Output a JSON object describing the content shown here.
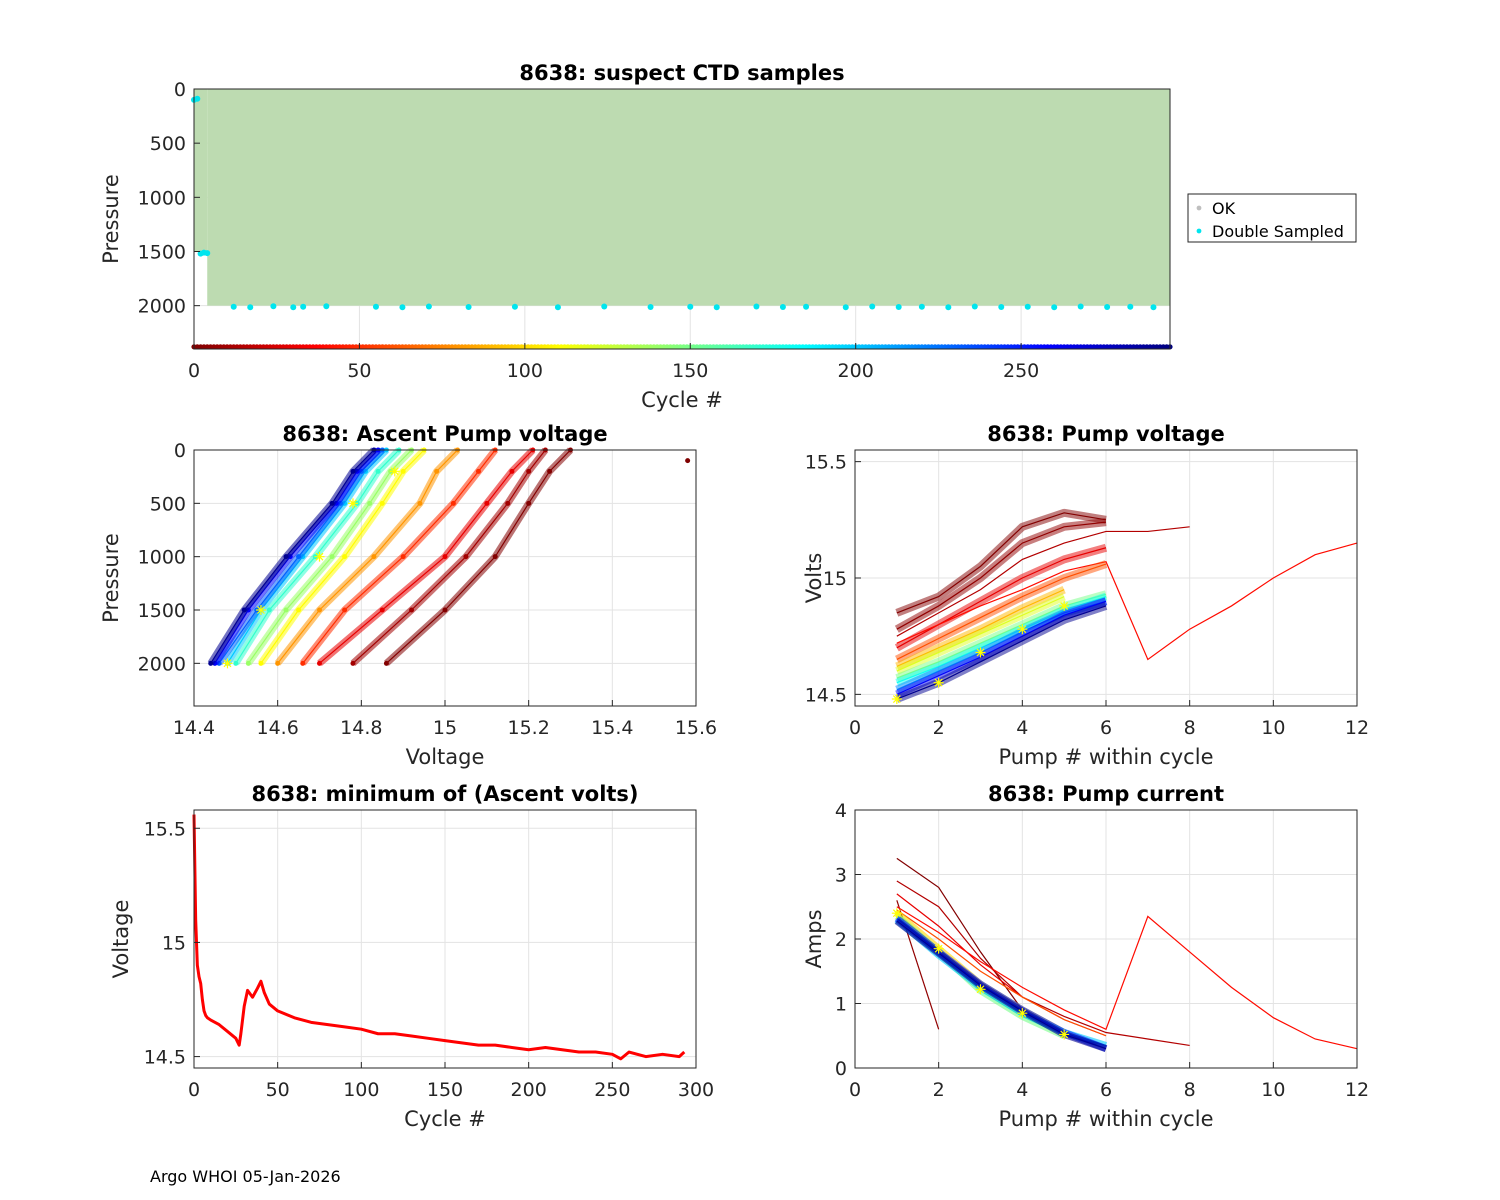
{
  "footer": "Argo WHOI 05-Jan-2026",
  "chart_data": [
    {
      "id": "suspect",
      "type": "scatter",
      "title": "8638: suspect CTD samples",
      "xlabel": "Cycle #",
      "ylabel": "Pressure",
      "xlim": [
        0,
        295
      ],
      "ylim": [
        2400,
        0
      ],
      "xticks": [
        0,
        50,
        100,
        150,
        200,
        250
      ],
      "yticks": [
        0,
        500,
        1000,
        1500,
        2000
      ],
      "legend": {
        "position": "outside-right",
        "entries": [
          {
            "label": "OK",
            "color": "#bfbfbf"
          },
          {
            "label": "Double Sampled",
            "color": "#00e5ee"
          }
        ]
      },
      "ok_region": {
        "cycles": [
          0,
          295
        ],
        "pressure": [
          0,
          2000
        ],
        "fill": "#bddbb1"
      },
      "double_sampled": [
        {
          "cycle": 0,
          "pressure": 100
        },
        {
          "cycle": 1,
          "pressure": 90
        },
        {
          "cycle": 2,
          "pressure": 1520
        },
        {
          "cycle": 3,
          "pressure": 1510
        },
        {
          "cycle": 4,
          "pressure": 1515
        },
        {
          "cycle": 12,
          "pressure": 2010
        },
        {
          "cycle": 17,
          "pressure": 2015
        },
        {
          "cycle": 24,
          "pressure": 2005
        },
        {
          "cycle": 30,
          "pressure": 2015
        },
        {
          "cycle": 33,
          "pressure": 2010
        },
        {
          "cycle": 40,
          "pressure": 2005
        },
        {
          "cycle": 55,
          "pressure": 2010
        },
        {
          "cycle": 63,
          "pressure": 2015
        },
        {
          "cycle": 71,
          "pressure": 2008
        },
        {
          "cycle": 83,
          "pressure": 2012
        },
        {
          "cycle": 97,
          "pressure": 2010
        },
        {
          "cycle": 110,
          "pressure": 2015
        },
        {
          "cycle": 124,
          "pressure": 2008
        },
        {
          "cycle": 138,
          "pressure": 2012
        },
        {
          "cycle": 150,
          "pressure": 2010
        },
        {
          "cycle": 158,
          "pressure": 2015
        },
        {
          "cycle": 170,
          "pressure": 2008
        },
        {
          "cycle": 178,
          "pressure": 2012
        },
        {
          "cycle": 185,
          "pressure": 2010
        },
        {
          "cycle": 197,
          "pressure": 2015
        },
        {
          "cycle": 205,
          "pressure": 2008
        },
        {
          "cycle": 213,
          "pressure": 2012
        },
        {
          "cycle": 220,
          "pressure": 2010
        },
        {
          "cycle": 228,
          "pressure": 2015
        },
        {
          "cycle": 236,
          "pressure": 2008
        },
        {
          "cycle": 244,
          "pressure": 2012
        },
        {
          "cycle": 252,
          "pressure": 2010
        },
        {
          "cycle": 260,
          "pressure": 2015
        },
        {
          "cycle": 268,
          "pressure": 2008
        },
        {
          "cycle": 276,
          "pressure": 2012
        },
        {
          "cycle": 283,
          "pressure": 2010
        },
        {
          "cycle": 290,
          "pressure": 2015
        }
      ],
      "cycle_colorbar": {
        "pressure": 2380,
        "cycles": [
          0,
          295
        ],
        "colormap": "jet-reversed"
      }
    },
    {
      "id": "ascent",
      "type": "line",
      "title": "8638: Ascent Pump voltage",
      "xlabel": "Voltage",
      "ylabel": "Pressure",
      "xlim": [
        14.4,
        15.6
      ],
      "ylim": [
        2400,
        0
      ],
      "xticks": [
        14.4,
        14.6,
        14.8,
        15,
        15.2,
        15.4,
        15.6
      ],
      "yticks": [
        0,
        500,
        1000,
        1500,
        2000
      ],
      "pressure_levels": [
        2000,
        1500,
        1000,
        500,
        200,
        0
      ],
      "series": [
        {
          "cycle": 1,
          "voltage": [
            14.86,
            15.0,
            15.12,
            15.2,
            15.25,
            15.3
          ]
        },
        {
          "cycle": 10,
          "voltage": [
            14.78,
            14.92,
            15.05,
            15.15,
            15.2,
            15.24
          ]
        },
        {
          "cycle": 30,
          "voltage": [
            14.7,
            14.85,
            15.0,
            15.1,
            15.16,
            15.21
          ]
        },
        {
          "cycle": 50,
          "voltage": [
            14.66,
            14.76,
            14.9,
            15.02,
            15.08,
            15.12
          ]
        },
        {
          "cycle": 80,
          "voltage": [
            14.6,
            14.7,
            14.83,
            14.94,
            14.98,
            15.03
          ]
        },
        {
          "cycle": 110,
          "voltage": [
            14.56,
            14.65,
            14.76,
            14.85,
            14.9,
            14.95
          ]
        },
        {
          "cycle": 140,
          "voltage": [
            14.53,
            14.62,
            14.73,
            14.82,
            14.87,
            14.92
          ]
        },
        {
          "cycle": 170,
          "voltage": [
            14.5,
            14.58,
            14.69,
            14.79,
            14.84,
            14.89
          ]
        },
        {
          "cycle": 200,
          "voltage": [
            14.48,
            14.56,
            14.66,
            14.76,
            14.81,
            14.86
          ]
        },
        {
          "cycle": 230,
          "voltage": [
            14.46,
            14.55,
            14.65,
            14.75,
            14.8,
            14.85
          ]
        },
        {
          "cycle": 260,
          "voltage": [
            14.45,
            14.53,
            14.63,
            14.74,
            14.79,
            14.84
          ]
        },
        {
          "cycle": 290,
          "voltage": [
            14.44,
            14.52,
            14.62,
            14.73,
            14.78,
            14.83
          ]
        }
      ],
      "highlight": {
        "color": "#ffff00",
        "points": [
          [
            14.48,
            2000
          ],
          [
            14.56,
            1500
          ],
          [
            14.7,
            1000
          ],
          [
            14.78,
            500
          ],
          [
            14.88,
            200
          ]
        ]
      },
      "outliers": [
        {
          "voltage": 15.58,
          "pressure": 100
        }
      ]
    },
    {
      "id": "pumpv",
      "type": "line",
      "title": "8638: Pump voltage",
      "xlabel": "Pump # within cycle",
      "ylabel": "Volts",
      "xlim": [
        0,
        12
      ],
      "ylim": [
        14.45,
        15.55
      ],
      "xticks": [
        0,
        2,
        4,
        6,
        8,
        10,
        12
      ],
      "yticks": [
        14.5,
        15,
        15.5
      ],
      "series": [
        {
          "cycle": 1,
          "values": [
            14.85,
            14.92,
            15.05,
            15.22,
            15.28,
            15.25
          ]
        },
        {
          "cycle": 5,
          "values": [
            14.78,
            14.88,
            15.0,
            15.15,
            15.22,
            15.24
          ]
        },
        {
          "cycle": 15,
          "values": [
            14.75,
            14.85,
            14.95,
            15.08,
            15.15,
            15.2,
            15.2,
            15.22
          ]
        },
        {
          "cycle": 30,
          "values": [
            14.7,
            14.8,
            14.9,
            15.0,
            15.08,
            15.13
          ]
        },
        {
          "cycle": 40,
          "values": [
            14.72,
            14.8,
            14.88,
            14.95,
            15.03,
            15.07,
            14.65,
            14.78,
            14.88,
            15.0,
            15.1,
            15.15
          ]
        },
        {
          "cycle": 60,
          "values": [
            14.65,
            14.74,
            14.83,
            14.92,
            15.0,
            15.06
          ]
        },
        {
          "cycle": 90,
          "values": [
            14.62,
            14.7,
            14.78,
            14.87,
            14.95
          ]
        },
        {
          "cycle": 120,
          "values": [
            14.6,
            14.68,
            14.76,
            14.84,
            14.92
          ]
        },
        {
          "cycle": 150,
          "values": [
            14.57,
            14.64,
            14.72,
            14.8,
            14.88,
            14.93
          ]
        },
        {
          "cycle": 180,
          "values": [
            14.55,
            14.62,
            14.7,
            14.78,
            14.86,
            14.92
          ]
        },
        {
          "cycle": 220,
          "values": [
            14.52,
            14.6,
            14.68,
            14.77,
            14.85,
            14.9
          ]
        },
        {
          "cycle": 260,
          "values": [
            14.5,
            14.58,
            14.66,
            14.75,
            14.84,
            14.9
          ]
        },
        {
          "cycle": 290,
          "values": [
            14.48,
            14.55,
            14.64,
            14.73,
            14.82,
            14.88
          ]
        }
      ],
      "highlight": {
        "color": "#ffff00",
        "points": [
          [
            1,
            14.48
          ],
          [
            2,
            14.55
          ],
          [
            3,
            14.68
          ],
          [
            4,
            14.78
          ],
          [
            5,
            14.88
          ]
        ]
      }
    },
    {
      "id": "minv",
      "type": "line",
      "title": "8638: minimum of (Ascent volts)",
      "xlabel": "Cycle #",
      "ylabel": "Voltage",
      "xlim": [
        0,
        300
      ],
      "ylim": [
        14.45,
        15.58
      ],
      "xticks": [
        0,
        50,
        100,
        150,
        200,
        250,
        300
      ],
      "yticks": [
        14.5,
        15,
        15.5
      ],
      "color": "#ff0000",
      "x": [
        0,
        1,
        2,
        3,
        4,
        5,
        6,
        7,
        8,
        10,
        15,
        20,
        25,
        27,
        28,
        30,
        32,
        35,
        38,
        40,
        42,
        45,
        50,
        60,
        70,
        80,
        90,
        100,
        110,
        120,
        130,
        140,
        150,
        160,
        170,
        180,
        190,
        200,
        210,
        220,
        230,
        240,
        250,
        255,
        260,
        270,
        280,
        290,
        293
      ],
      "values": [
        15.56,
        15.1,
        14.9,
        14.85,
        14.82,
        14.75,
        14.7,
        14.68,
        14.67,
        14.66,
        14.64,
        14.61,
        14.58,
        14.55,
        14.6,
        14.72,
        14.79,
        14.76,
        14.8,
        14.83,
        14.78,
        14.73,
        14.7,
        14.67,
        14.65,
        14.64,
        14.63,
        14.62,
        14.6,
        14.6,
        14.59,
        14.58,
        14.57,
        14.56,
        14.55,
        14.55,
        14.54,
        14.53,
        14.54,
        14.53,
        14.52,
        14.52,
        14.51,
        14.49,
        14.52,
        14.5,
        14.51,
        14.5,
        14.52
      ]
    },
    {
      "id": "pumpc",
      "type": "line",
      "title": "8638: Pump current",
      "xlabel": "Pump # within cycle",
      "ylabel": "Amps",
      "xlim": [
        0,
        12
      ],
      "ylim": [
        0,
        4
      ],
      "xticks": [
        0,
        2,
        4,
        6,
        8,
        10,
        12
      ],
      "yticks": [
        0,
        1,
        2,
        3,
        4
      ],
      "series": [
        {
          "cycle": 1,
          "values": [
            3.25,
            2.8,
            1.8,
            0.9,
            0.5,
            0.35
          ]
        },
        {
          "cycle": 5,
          "values": [
            2.6,
            0.6
          ]
        },
        {
          "cycle": 15,
          "values": [
            2.9,
            2.5,
            1.7,
            1.1,
            0.8,
            0.55,
            0.45,
            0.35
          ]
        },
        {
          "cycle": 30,
          "values": [
            2.7,
            2.2,
            1.6,
            1.1,
            0.75,
            0.5
          ]
        },
        {
          "cycle": 40,
          "values": [
            2.5,
            2.1,
            1.65,
            1.25,
            0.9,
            0.6,
            2.35,
            1.8,
            1.25,
            0.78,
            0.45,
            0.3
          ]
        },
        {
          "cycle": 60,
          "values": [
            2.45,
            2.0,
            1.5,
            1.1,
            0.75,
            0.5
          ]
        },
        {
          "cycle": 100,
          "values": [
            2.4,
            1.85,
            1.3,
            0.9,
            0.55
          ]
        },
        {
          "cycle": 150,
          "values": [
            2.35,
            1.8,
            1.2,
            0.8,
            0.5
          ]
        },
        {
          "cycle": 200,
          "values": [
            2.3,
            1.75,
            1.25,
            0.85,
            0.55,
            0.35
          ]
        },
        {
          "cycle": 250,
          "values": [
            2.32,
            1.8,
            1.3,
            0.9,
            0.55,
            0.3
          ]
        },
        {
          "cycle": 290,
          "values": [
            2.28,
            1.78,
            1.28,
            0.88,
            0.52,
            0.3
          ]
        }
      ],
      "highlight": {
        "color": "#ffff00",
        "points": [
          [
            1,
            2.4
          ],
          [
            2,
            1.85
          ],
          [
            3,
            1.22
          ],
          [
            4,
            0.85
          ],
          [
            5,
            0.52
          ]
        ]
      }
    }
  ]
}
